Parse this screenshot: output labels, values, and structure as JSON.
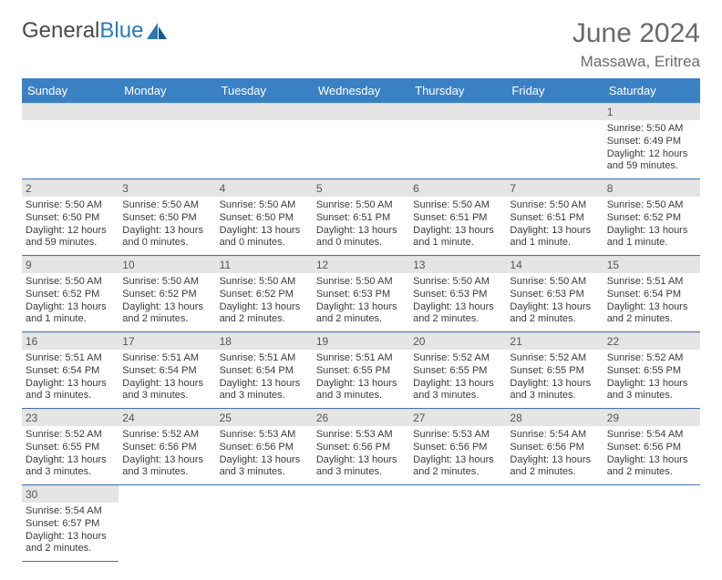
{
  "brand": {
    "part1": "General",
    "part2": "Blue"
  },
  "title": {
    "month": "June 2024",
    "location": "Massawa, Eritrea"
  },
  "colors": {
    "header_bg": "#3a81c4",
    "header_text": "#ffffff",
    "daynum_bg": "#e5e5e5",
    "border": "#4a72a8",
    "brand_blue": "#2a7ab8",
    "text": "#3a3a3a"
  },
  "weekdays": [
    "Sunday",
    "Monday",
    "Tuesday",
    "Wednesday",
    "Thursday",
    "Friday",
    "Saturday"
  ],
  "weeks": [
    [
      {
        "empty": true
      },
      {
        "empty": true
      },
      {
        "empty": true
      },
      {
        "empty": true
      },
      {
        "empty": true
      },
      {
        "empty": true
      },
      {
        "day": "1",
        "sunrise": "Sunrise: 5:50 AM",
        "sunset": "Sunset: 6:49 PM",
        "daylight": "Daylight: 12 hours and 59 minutes."
      }
    ],
    [
      {
        "day": "2",
        "sunrise": "Sunrise: 5:50 AM",
        "sunset": "Sunset: 6:50 PM",
        "daylight": "Daylight: 12 hours and 59 minutes."
      },
      {
        "day": "3",
        "sunrise": "Sunrise: 5:50 AM",
        "sunset": "Sunset: 6:50 PM",
        "daylight": "Daylight: 13 hours and 0 minutes."
      },
      {
        "day": "4",
        "sunrise": "Sunrise: 5:50 AM",
        "sunset": "Sunset: 6:50 PM",
        "daylight": "Daylight: 13 hours and 0 minutes."
      },
      {
        "day": "5",
        "sunrise": "Sunrise: 5:50 AM",
        "sunset": "Sunset: 6:51 PM",
        "daylight": "Daylight: 13 hours and 0 minutes."
      },
      {
        "day": "6",
        "sunrise": "Sunrise: 5:50 AM",
        "sunset": "Sunset: 6:51 PM",
        "daylight": "Daylight: 13 hours and 1 minute."
      },
      {
        "day": "7",
        "sunrise": "Sunrise: 5:50 AM",
        "sunset": "Sunset: 6:51 PM",
        "daylight": "Daylight: 13 hours and 1 minute."
      },
      {
        "day": "8",
        "sunrise": "Sunrise: 5:50 AM",
        "sunset": "Sunset: 6:52 PM",
        "daylight": "Daylight: 13 hours and 1 minute."
      }
    ],
    [
      {
        "day": "9",
        "sunrise": "Sunrise: 5:50 AM",
        "sunset": "Sunset: 6:52 PM",
        "daylight": "Daylight: 13 hours and 1 minute."
      },
      {
        "day": "10",
        "sunrise": "Sunrise: 5:50 AM",
        "sunset": "Sunset: 6:52 PM",
        "daylight": "Daylight: 13 hours and 2 minutes."
      },
      {
        "day": "11",
        "sunrise": "Sunrise: 5:50 AM",
        "sunset": "Sunset: 6:52 PM",
        "daylight": "Daylight: 13 hours and 2 minutes."
      },
      {
        "day": "12",
        "sunrise": "Sunrise: 5:50 AM",
        "sunset": "Sunset: 6:53 PM",
        "daylight": "Daylight: 13 hours and 2 minutes."
      },
      {
        "day": "13",
        "sunrise": "Sunrise: 5:50 AM",
        "sunset": "Sunset: 6:53 PM",
        "daylight": "Daylight: 13 hours and 2 minutes."
      },
      {
        "day": "14",
        "sunrise": "Sunrise: 5:50 AM",
        "sunset": "Sunset: 6:53 PM",
        "daylight": "Daylight: 13 hours and 2 minutes."
      },
      {
        "day": "15",
        "sunrise": "Sunrise: 5:51 AM",
        "sunset": "Sunset: 6:54 PM",
        "daylight": "Daylight: 13 hours and 2 minutes."
      }
    ],
    [
      {
        "day": "16",
        "sunrise": "Sunrise: 5:51 AM",
        "sunset": "Sunset: 6:54 PM",
        "daylight": "Daylight: 13 hours and 3 minutes."
      },
      {
        "day": "17",
        "sunrise": "Sunrise: 5:51 AM",
        "sunset": "Sunset: 6:54 PM",
        "daylight": "Daylight: 13 hours and 3 minutes."
      },
      {
        "day": "18",
        "sunrise": "Sunrise: 5:51 AM",
        "sunset": "Sunset: 6:54 PM",
        "daylight": "Daylight: 13 hours and 3 minutes."
      },
      {
        "day": "19",
        "sunrise": "Sunrise: 5:51 AM",
        "sunset": "Sunset: 6:55 PM",
        "daylight": "Daylight: 13 hours and 3 minutes."
      },
      {
        "day": "20",
        "sunrise": "Sunrise: 5:52 AM",
        "sunset": "Sunset: 6:55 PM",
        "daylight": "Daylight: 13 hours and 3 minutes."
      },
      {
        "day": "21",
        "sunrise": "Sunrise: 5:52 AM",
        "sunset": "Sunset: 6:55 PM",
        "daylight": "Daylight: 13 hours and 3 minutes."
      },
      {
        "day": "22",
        "sunrise": "Sunrise: 5:52 AM",
        "sunset": "Sunset: 6:55 PM",
        "daylight": "Daylight: 13 hours and 3 minutes."
      }
    ],
    [
      {
        "day": "23",
        "sunrise": "Sunrise: 5:52 AM",
        "sunset": "Sunset: 6:55 PM",
        "daylight": "Daylight: 13 hours and 3 minutes."
      },
      {
        "day": "24",
        "sunrise": "Sunrise: 5:52 AM",
        "sunset": "Sunset: 6:56 PM",
        "daylight": "Daylight: 13 hours and 3 minutes."
      },
      {
        "day": "25",
        "sunrise": "Sunrise: 5:53 AM",
        "sunset": "Sunset: 6:56 PM",
        "daylight": "Daylight: 13 hours and 3 minutes."
      },
      {
        "day": "26",
        "sunrise": "Sunrise: 5:53 AM",
        "sunset": "Sunset: 6:56 PM",
        "daylight": "Daylight: 13 hours and 3 minutes."
      },
      {
        "day": "27",
        "sunrise": "Sunrise: 5:53 AM",
        "sunset": "Sunset: 6:56 PM",
        "daylight": "Daylight: 13 hours and 2 minutes."
      },
      {
        "day": "28",
        "sunrise": "Sunrise: 5:54 AM",
        "sunset": "Sunset: 6:56 PM",
        "daylight": "Daylight: 13 hours and 2 minutes."
      },
      {
        "day": "29",
        "sunrise": "Sunrise: 5:54 AM",
        "sunset": "Sunset: 6:56 PM",
        "daylight": "Daylight: 13 hours and 2 minutes."
      }
    ],
    [
      {
        "day": "30",
        "sunrise": "Sunrise: 5:54 AM",
        "sunset": "Sunset: 6:57 PM",
        "daylight": "Daylight: 13 hours and 2 minutes."
      },
      {
        "empty": true
      },
      {
        "empty": true
      },
      {
        "empty": true
      },
      {
        "empty": true
      },
      {
        "empty": true
      },
      {
        "empty": true
      }
    ]
  ]
}
